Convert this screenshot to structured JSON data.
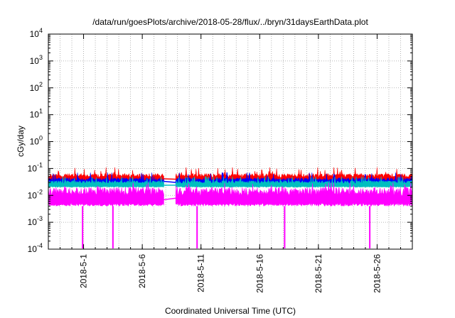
{
  "chart_data": {
    "type": "line",
    "title": "/data/run/goesPlots/archive/2018-05-28/flux/../bryn/31daysEarthData.plot",
    "xlabel": "Coordinated Universal Time (UTC)",
    "ylabel": "cGy/day",
    "yscale": "log",
    "ylim": [
      0.0001,
      10000
    ],
    "xlim": [
      "2018-04-28",
      "2018-05-29"
    ],
    "grid": true,
    "legend": "none",
    "x_ticks": [
      "2018-5-1",
      "2018-5-6",
      "2018-5-11",
      "2018-5-16",
      "2018-5-21",
      "2018-5-26"
    ],
    "y_ticks": [
      {
        "value": 0.0001,
        "base": "10",
        "exp": "-4"
      },
      {
        "value": 0.001,
        "base": "10",
        "exp": "-3"
      },
      {
        "value": 0.01,
        "base": "10",
        "exp": "-2"
      },
      {
        "value": 0.1,
        "base": "10",
        "exp": "-1"
      },
      {
        "value": 1,
        "base": "10",
        "exp": "0"
      },
      {
        "value": 10,
        "base": "10",
        "exp": "1"
      },
      {
        "value": 100,
        "base": "10",
        "exp": "2"
      },
      {
        "value": 1000,
        "base": "10",
        "exp": "3"
      },
      {
        "value": 10000,
        "base": "10",
        "exp": "4"
      }
    ],
    "data_gap": [
      "2018-05-07T20:00",
      "2018-05-08T20:00"
    ],
    "series": [
      {
        "color": "#ff0000",
        "band_low": 0.03,
        "band_high": 0.065,
        "spike_max": 0.11
      },
      {
        "color": "#0000ff",
        "band_low": 0.025,
        "band_high": 0.045,
        "spike_max": 0.07
      },
      {
        "color": "#00bfbf",
        "band_low": 0.02,
        "band_high": 0.035,
        "spike_max": 0.05
      },
      {
        "color": "#ff00ff",
        "band_low": 0.004,
        "band_high": 0.02,
        "spike_max": 0.03
      }
    ],
    "dropouts": [
      "2018-04-30T22:00",
      "2018-05-03T12:00",
      "2018-05-10T16:00",
      "2018-05-18T03:00",
      "2018-05-25T09:00"
    ]
  }
}
